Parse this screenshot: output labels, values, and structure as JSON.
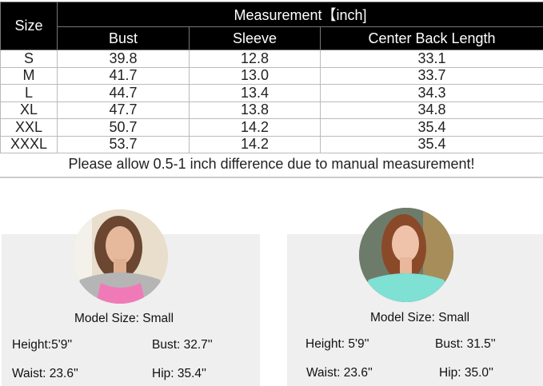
{
  "table": {
    "size_header": "Size",
    "group_header": "Measurement【inch]",
    "columns": [
      "Bust",
      "Sleeve",
      "Center Back Length"
    ],
    "rows": [
      [
        "S",
        "39.8",
        "12.8",
        "33.1"
      ],
      [
        "M",
        "41.7",
        "13.0",
        "33.7"
      ],
      [
        "L",
        "44.7",
        "13.4",
        "34.3"
      ],
      [
        "XL",
        "47.7",
        "13.8",
        "34.8"
      ],
      [
        "XXL",
        "50.7",
        "14.2",
        "35.4"
      ],
      [
        "XXXL",
        "53.7",
        "14.2",
        "35.4"
      ]
    ]
  },
  "note": "Please allow 0.5-1 inch difference due to manual measurement!",
  "models": [
    {
      "size": "Model Size: Small",
      "height": "Height:5'9''",
      "bust": "Bust: 32.7''",
      "waist": "Waist: 23.6''",
      "hip": "Hip: 35.4''",
      "shirt_color": "#f07ab8"
    },
    {
      "size": "Model Size: Small",
      "height": "Height: 5'9''",
      "bust": "Bust: 31.5''",
      "waist": "Waist: 23.6''",
      "hip": "Hip: 35.0''",
      "shirt_color": "#7fe0d4"
    }
  ]
}
